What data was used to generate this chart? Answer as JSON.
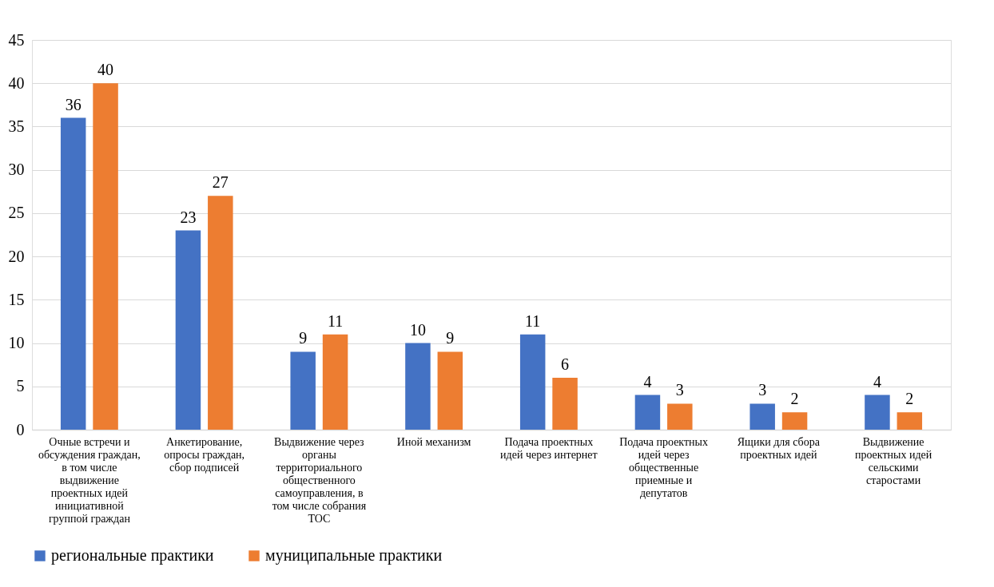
{
  "chart_data": {
    "type": "bar",
    "categories": [
      "Очные встречи и обсуждения граждан, в том числе выдвижение проектных идей инициативной группой граждан",
      "Анкетирование, опросы граждан, сбор подписей",
      "Выдвижение через органы территориального общественного самоуправления, в том числе собрания ТОС",
      "Иной механизм",
      "Подача проектных идей через интернет",
      "Подача проектных идей через общественные приемные и депутатов",
      "Ящики для сбора проектных идей",
      "Выдвижение проектных идей сельскими старостами"
    ],
    "series": [
      {
        "name": "региональные практики",
        "color": "#4472c4",
        "values": [
          36,
          23,
          9,
          10,
          11,
          4,
          3,
          4
        ]
      },
      {
        "name": "муниципальные практики",
        "color": "#ed7d31",
        "values": [
          40,
          27,
          11,
          9,
          6,
          3,
          2,
          2
        ]
      }
    ],
    "ylim": [
      0,
      45
    ],
    "yticks": [
      0,
      5,
      10,
      15,
      20,
      25,
      30,
      35,
      40,
      45
    ],
    "grid": "y",
    "legend": "bottom",
    "data_labels": true
  }
}
